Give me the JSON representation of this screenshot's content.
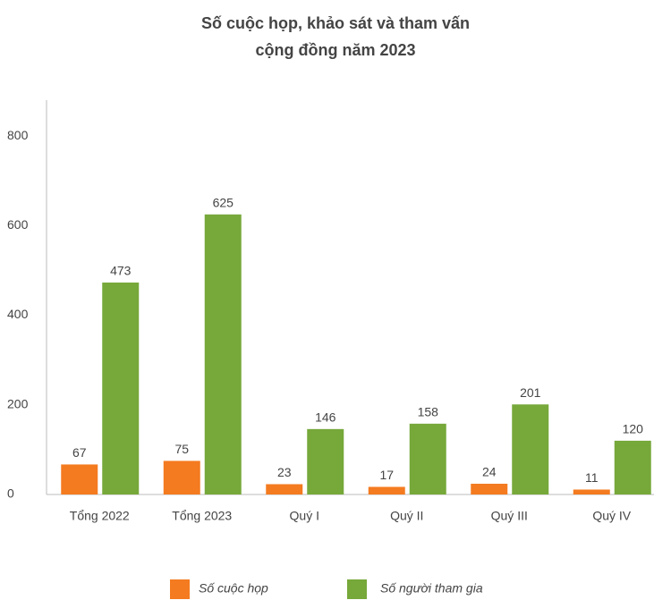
{
  "chart_data": {
    "type": "bar",
    "title": [
      "Số cuộc họp, khảo sát và tham vấn",
      "cộng đồng năm 2023"
    ],
    "categories": [
      "Tổng 2022",
      "Tổng 2023",
      "Quý I",
      "Quý II",
      "Quý III",
      "Quý IV"
    ],
    "series": [
      {
        "name": "Số cuộc họp",
        "color": "#f47b20",
        "values": [
          67,
          75,
          23,
          17,
          24,
          11
        ]
      },
      {
        "name": "Số người tham gia",
        "color": "#76a83a",
        "values": [
          473,
          625,
          146,
          158,
          201,
          120
        ]
      }
    ],
    "ylim": [
      0,
      880
    ],
    "yticks": [
      0,
      200,
      400,
      600,
      800
    ],
    "grid": false,
    "legend": "bottom"
  }
}
